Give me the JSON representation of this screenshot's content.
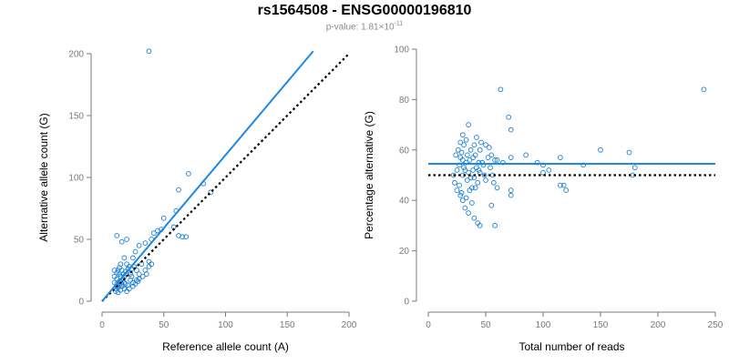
{
  "figure": {
    "title": "rs1564508 - ENSG00000196810",
    "subtitle_prefix": "p-value: 1.81×10",
    "subtitle_exponent": "-11"
  },
  "colors": {
    "points": "#1a7fd6",
    "fit": "#1e88e5",
    "reference": "#000000",
    "axis": "#7a7a7a"
  },
  "chart_data": [
    {
      "type": "scatter",
      "title": "",
      "xlabel": "Reference allele count (A)",
      "ylabel": "Alternative allele count (G)",
      "xlim": [
        0,
        200
      ],
      "ylim": [
        0,
        200
      ],
      "xticks": [
        0,
        50,
        100,
        150,
        200
      ],
      "yticks": [
        0,
        50,
        100,
        150,
        200
      ],
      "grid": false,
      "fit_line": {
        "from": [
          0,
          0
        ],
        "to": [
          171,
          202
        ]
      },
      "reference_line": {
        "from": [
          0,
          0
        ],
        "to": [
          200,
          200
        ],
        "style": "dotted"
      },
      "points": [
        [
          38,
          202
        ],
        [
          70,
          103
        ],
        [
          62,
          90
        ],
        [
          82,
          95
        ],
        [
          60,
          73
        ],
        [
          88,
          88
        ],
        [
          50,
          67
        ],
        [
          58,
          60
        ],
        [
          48,
          58
        ],
        [
          45,
          57
        ],
        [
          42,
          55
        ],
        [
          40,
          50
        ],
        [
          35,
          47
        ],
        [
          62,
          53
        ],
        [
          65,
          52
        ],
        [
          68,
          52
        ],
        [
          38,
          32
        ],
        [
          40,
          30
        ],
        [
          30,
          45
        ],
        [
          27,
          40
        ],
        [
          25,
          35
        ],
        [
          20,
          30
        ],
        [
          22,
          28
        ],
        [
          28,
          25
        ],
        [
          30,
          22
        ],
        [
          32,
          30
        ],
        [
          35,
          25
        ],
        [
          24,
          20
        ],
        [
          25,
          15
        ],
        [
          28,
          17
        ],
        [
          20,
          22
        ],
        [
          18,
          20
        ],
        [
          15,
          20
        ],
        [
          14,
          22
        ],
        [
          12,
          18
        ],
        [
          13,
          25
        ],
        [
          10,
          20
        ],
        [
          15,
          30
        ],
        [
          18,
          35
        ],
        [
          12,
          53
        ],
        [
          20,
          50
        ],
        [
          16,
          48
        ],
        [
          10,
          15
        ],
        [
          12,
          14
        ],
        [
          14,
          13
        ],
        [
          16,
          12
        ],
        [
          18,
          15
        ],
        [
          11,
          10
        ],
        [
          13,
          11
        ],
        [
          15,
          16
        ],
        [
          17,
          18
        ],
        [
          19,
          14
        ],
        [
          21,
          13
        ],
        [
          23,
          17
        ],
        [
          12,
          12
        ],
        [
          14,
          16
        ],
        [
          16,
          14
        ],
        [
          18,
          10
        ],
        [
          20,
          8
        ],
        [
          22,
          10
        ],
        [
          25,
          12
        ],
        [
          27,
          14
        ],
        [
          29,
          16
        ],
        [
          30,
          18
        ],
        [
          33,
          20
        ],
        [
          36,
          22
        ],
        [
          38,
          28
        ],
        [
          10,
          25
        ],
        [
          12,
          23
        ],
        [
          14,
          27
        ],
        [
          16,
          25
        ],
        [
          17,
          22
        ],
        [
          19,
          24
        ],
        [
          21,
          26
        ],
        [
          23,
          22
        ],
        [
          24,
          26
        ],
        [
          26,
          28
        ],
        [
          11,
          8
        ],
        [
          13,
          7
        ],
        [
          15,
          9
        ]
      ]
    },
    {
      "type": "scatter",
      "title": "",
      "xlabel": "Total number of reads",
      "ylabel": "Percentage alternative (G)",
      "xlim": [
        0,
        250
      ],
      "ylim": [
        0,
        100
      ],
      "xticks": [
        0,
        50,
        100,
        150,
        200,
        250
      ],
      "yticks": [
        0,
        20,
        40,
        60,
        80,
        100
      ],
      "grid": false,
      "fit_line": {
        "from": [
          0,
          54.5
        ],
        "to": [
          250,
          54.5
        ]
      },
      "reference_line": {
        "from": [
          0,
          50
        ],
        "to": [
          250,
          50
        ],
        "style": "dotted"
      },
      "points": [
        [
          240,
          84
        ],
        [
          63,
          84
        ],
        [
          70,
          73
        ],
        [
          72,
          68
        ],
        [
          35,
          70
        ],
        [
          30,
          66
        ],
        [
          28,
          63
        ],
        [
          33,
          64
        ],
        [
          40,
          62
        ],
        [
          45,
          60
        ],
        [
          50,
          62
        ],
        [
          55,
          58
        ],
        [
          60,
          56
        ],
        [
          65,
          55
        ],
        [
          72,
          57
        ],
        [
          85,
          58
        ],
        [
          95,
          55
        ],
        [
          100,
          54
        ],
        [
          105,
          52
        ],
        [
          115,
          57
        ],
        [
          118,
          46
        ],
        [
          120,
          44
        ],
        [
          115,
          46
        ],
        [
          150,
          60
        ],
        [
          175,
          59
        ],
        [
          178,
          50
        ],
        [
          180,
          53
        ],
        [
          135,
          54
        ],
        [
          100,
          51
        ],
        [
          72,
          42
        ],
        [
          72,
          44
        ],
        [
          60,
          45
        ],
        [
          55,
          38
        ],
        [
          58,
          30
        ],
        [
          45,
          30
        ],
        [
          43,
          31
        ],
        [
          40,
          33
        ],
        [
          35,
          35
        ],
        [
          32,
          37
        ],
        [
          30,
          40
        ],
        [
          28,
          42
        ],
        [
          25,
          44
        ],
        [
          23,
          47
        ],
        [
          22,
          50
        ],
        [
          25,
          52
        ],
        [
          27,
          54
        ],
        [
          28,
          57
        ],
        [
          29,
          59
        ],
        [
          30,
          50
        ],
        [
          31,
          53
        ],
        [
          33,
          55
        ],
        [
          34,
          48
        ],
        [
          35,
          51
        ],
        [
          36,
          56
        ],
        [
          37,
          60
        ],
        [
          38,
          45
        ],
        [
          39,
          52
        ],
        [
          40,
          49
        ],
        [
          41,
          58
        ],
        [
          42,
          53
        ],
        [
          43,
          47
        ],
        [
          44,
          55
        ],
        [
          45,
          51
        ],
        [
          46,
          63
        ],
        [
          48,
          54
        ],
        [
          50,
          48
        ],
        [
          52,
          57
        ],
        [
          54,
          53
        ],
        [
          56,
          50
        ],
        [
          58,
          56
        ],
        [
          24,
          58
        ],
        [
          26,
          60
        ],
        [
          27,
          46
        ],
        [
          29,
          43
        ],
        [
          31,
          62
        ],
        [
          33,
          41
        ],
        [
          34,
          58
        ],
        [
          36,
          44
        ],
        [
          38,
          39
        ],
        [
          42,
          65
        ],
        [
          30,
          56
        ],
        [
          32,
          52
        ],
        [
          37,
          49
        ],
        [
          39,
          57
        ],
        [
          41,
          45
        ],
        [
          44,
          52
        ],
        [
          47,
          55
        ],
        [
          49,
          50
        ],
        [
          53,
          61
        ],
        [
          57,
          47
        ]
      ]
    }
  ]
}
